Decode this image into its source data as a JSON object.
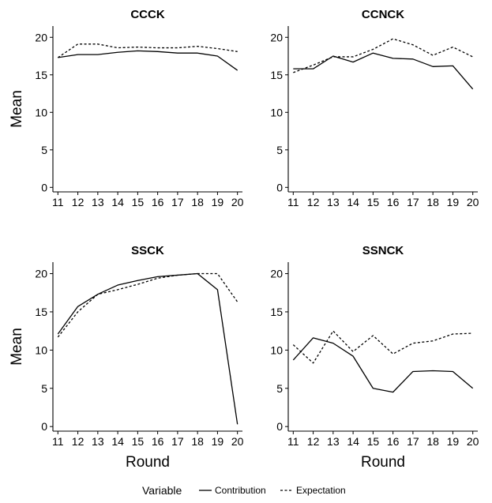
{
  "chart_data": {
    "type": "line",
    "facets": true,
    "ylabel": "Mean",
    "xlabel": "Round",
    "x": [
      11,
      12,
      13,
      14,
      15,
      16,
      17,
      18,
      19,
      20
    ],
    "x_ticks": [
      "11",
      "12",
      "13",
      "14",
      "15",
      "16",
      "17",
      "18",
      "19",
      "20"
    ],
    "y_ticks": [
      "0",
      "5",
      "10",
      "15",
      "20"
    ],
    "xlim": [
      10.75,
      20.25
    ],
    "ylim": [
      -0.6,
      21.5
    ],
    "grid": false,
    "legend": {
      "title": "Variable",
      "position": "bottom",
      "entries": [
        {
          "label": "Contribution",
          "dash": "solid"
        },
        {
          "label": "Expectation",
          "dash": "dotted"
        }
      ]
    },
    "panels": [
      {
        "title": "CCCK",
        "series": [
          {
            "name": "Contribution",
            "values": [
              17.3,
              17.7,
              17.7,
              18.0,
              18.2,
              18.1,
              17.9,
              17.9,
              17.5,
              15.6
            ]
          },
          {
            "name": "Expectation",
            "values": [
              17.3,
              19.1,
              19.1,
              18.6,
              18.7,
              18.6,
              18.6,
              18.8,
              18.5,
              18.1
            ]
          }
        ]
      },
      {
        "title": "CCNCK",
        "series": [
          {
            "name": "Contribution",
            "values": [
              15.8,
              15.8,
              17.5,
              16.7,
              17.9,
              17.2,
              17.1,
              16.1,
              16.2,
              13.1
            ]
          },
          {
            "name": "Expectation",
            "values": [
              15.3,
              16.3,
              17.4,
              17.4,
              18.4,
              19.8,
              19.0,
              17.6,
              18.7,
              17.4
            ]
          }
        ]
      },
      {
        "title": "SSCK",
        "series": [
          {
            "name": "Contribution",
            "values": [
              12.1,
              15.7,
              17.3,
              18.5,
              19.1,
              19.6,
              19.8,
              20.0,
              17.9,
              0.3
            ]
          },
          {
            "name": "Expectation",
            "values": [
              11.7,
              15.0,
              17.3,
              17.9,
              18.6,
              19.4,
              19.8,
              20.0,
              20.0,
              16.3
            ]
          }
        ]
      },
      {
        "title": "SSNCK",
        "series": [
          {
            "name": "Contribution",
            "values": [
              8.7,
              11.6,
              10.9,
              9.2,
              5.0,
              4.5,
              7.2,
              7.3,
              7.2,
              5.0
            ]
          },
          {
            "name": "Expectation",
            "values": [
              10.7,
              8.3,
              12.5,
              9.8,
              11.9,
              9.5,
              10.9,
              11.2,
              12.1,
              12.2
            ]
          }
        ]
      }
    ]
  }
}
